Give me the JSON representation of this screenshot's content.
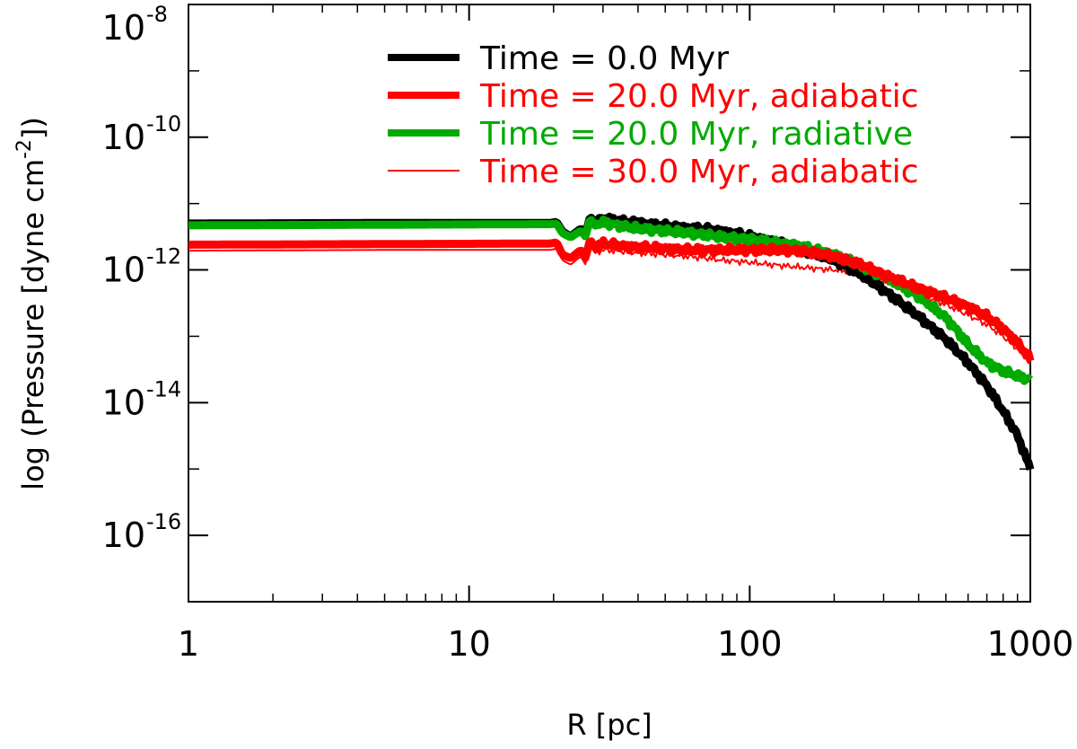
{
  "chart_data": {
    "type": "line",
    "xscale": "log",
    "yscale": "log",
    "xlim": [
      1,
      1000
    ],
    "ylim": [
      1e-17,
      1e-08
    ],
    "xlabel": "R [pc]",
    "ylabel": {
      "prefix": "log (Pressure [dyne cm",
      "exponent": "-2",
      "suffix": "])"
    },
    "x_ticks": [
      {
        "value": 1,
        "label": "1"
      },
      {
        "value": 10,
        "label": "10"
      },
      {
        "value": 100,
        "label": "100"
      },
      {
        "value": 1000,
        "label": "1000"
      }
    ],
    "y_ticks": [
      {
        "value": 1e-16,
        "base": "10",
        "exponent": "-16"
      },
      {
        "value": 1e-14,
        "base": "10",
        "exponent": "-14"
      },
      {
        "value": 1e-12,
        "base": "10",
        "exponent": "-12"
      },
      {
        "value": 1e-10,
        "base": "10",
        "exponent": "-10"
      },
      {
        "value": 1e-08,
        "base": "10",
        "exponent": "-8"
      }
    ],
    "legend_position": "top-right",
    "series": [
      {
        "name": "Time = 0.0 Myr",
        "color": "#000000",
        "line_weight": "thick",
        "points": [
          [
            1,
            5e-12
          ],
          [
            5,
            5.1e-12
          ],
          [
            19.5,
            5.1e-12
          ],
          [
            20.5,
            5.3e-12
          ],
          [
            21.5,
            3.8e-12
          ],
          [
            23,
            3.2e-12
          ],
          [
            25,
            4.2e-12
          ],
          [
            26,
            3.4e-12
          ],
          [
            27,
            6.5e-12
          ],
          [
            28,
            5.2e-12
          ],
          [
            30,
            6e-12
          ],
          [
            33,
            5.6e-12
          ],
          [
            36,
            5.3e-12
          ],
          [
            40,
            5.2e-12
          ],
          [
            45,
            4.8e-12
          ],
          [
            50,
            4.6e-12
          ],
          [
            60,
            4.3e-12
          ],
          [
            70,
            4.1e-12
          ],
          [
            80,
            3.8e-12
          ],
          [
            90,
            3.5e-12
          ],
          [
            100,
            3.2e-12
          ],
          [
            120,
            2.7e-12
          ],
          [
            150,
            2.1e-12
          ],
          [
            200,
            1.4e-12
          ],
          [
            250,
            8.5e-13
          ],
          [
            300,
            5e-13
          ],
          [
            400,
            2e-13
          ],
          [
            500,
            9e-14
          ],
          [
            600,
            4e-14
          ],
          [
            700,
            1.8e-14
          ],
          [
            800,
            7.5e-15
          ],
          [
            900,
            3.2e-15
          ],
          [
            1000,
            1e-15
          ]
        ]
      },
      {
        "name": "Time = 20.0 Myr, adiabatic",
        "color": "#ff0000",
        "line_weight": "thick",
        "points": [
          [
            1,
            2.4e-12
          ],
          [
            5,
            2.45e-12
          ],
          [
            19.5,
            2.5e-12
          ],
          [
            20.5,
            2.6e-12
          ],
          [
            21.5,
            1.7e-12
          ],
          [
            23,
            1.5e-12
          ],
          [
            25,
            2e-12
          ],
          [
            26,
            1.5e-12
          ],
          [
            27,
            2.9e-12
          ],
          [
            28,
            2.2e-12
          ],
          [
            30,
            2.5e-12
          ],
          [
            35,
            2.3e-12
          ],
          [
            40,
            2.2e-12
          ],
          [
            50,
            2.1e-12
          ],
          [
            60,
            2e-12
          ],
          [
            70,
            2e-12
          ],
          [
            80,
            2e-12
          ],
          [
            100,
            2e-12
          ],
          [
            120,
            2e-12
          ],
          [
            150,
            1.95e-12
          ],
          [
            200,
            1.6e-12
          ],
          [
            250,
            1.2e-12
          ],
          [
            300,
            8.5e-13
          ],
          [
            400,
            5.3e-13
          ],
          [
            500,
            3.8e-13
          ],
          [
            600,
            2.8e-13
          ],
          [
            700,
            2e-13
          ],
          [
            800,
            1.3e-13
          ],
          [
            900,
            8e-14
          ],
          [
            1000,
            4.5e-14
          ]
        ]
      },
      {
        "name": "Time = 20.0 Myr, radiative",
        "color": "#00aa00",
        "line_weight": "thick",
        "points": [
          [
            1,
            4.7e-12
          ],
          [
            5,
            4.8e-12
          ],
          [
            19.5,
            4.9e-12
          ],
          [
            20.5,
            5e-12
          ],
          [
            21.5,
            3.6e-12
          ],
          [
            23,
            3.1e-12
          ],
          [
            25,
            3.9e-12
          ],
          [
            26,
            3.2e-12
          ],
          [
            27,
            6e-12
          ],
          [
            28,
            4.8e-12
          ],
          [
            30,
            5.2e-12
          ],
          [
            35,
            4.6e-12
          ],
          [
            40,
            4.2e-12
          ],
          [
            50,
            3.9e-12
          ],
          [
            60,
            3.6e-12
          ],
          [
            70,
            3.4e-12
          ],
          [
            80,
            3.1e-12
          ],
          [
            100,
            2.9e-12
          ],
          [
            120,
            2.6e-12
          ],
          [
            150,
            2.3e-12
          ],
          [
            200,
            1.7e-12
          ],
          [
            250,
            1.15e-12
          ],
          [
            300,
            8e-13
          ],
          [
            400,
            4e-13
          ],
          [
            500,
            1.9e-13
          ],
          [
            550,
            1.2e-13
          ],
          [
            600,
            7.5e-14
          ],
          [
            700,
            4e-14
          ],
          [
            800,
            3e-14
          ],
          [
            900,
            2.5e-14
          ],
          [
            1000,
            2.2e-14
          ]
        ]
      },
      {
        "name": "Time = 30.0 Myr, adiabatic",
        "color": "#ff0000",
        "line_weight": "thin",
        "points": [
          [
            1,
            1.95e-12
          ],
          [
            5,
            2e-12
          ],
          [
            19.5,
            2e-12
          ],
          [
            20.5,
            2.1e-12
          ],
          [
            21.5,
            1.4e-12
          ],
          [
            23,
            1.2e-12
          ],
          [
            25,
            1.6e-12
          ],
          [
            26,
            1.2e-12
          ],
          [
            27,
            2.4e-12
          ],
          [
            28,
            1.8e-12
          ],
          [
            30,
            2e-12
          ],
          [
            35,
            1.9e-12
          ],
          [
            40,
            1.8e-12
          ],
          [
            50,
            1.7e-12
          ],
          [
            60,
            1.6e-12
          ],
          [
            70,
            1.5e-12
          ],
          [
            80,
            1.4e-12
          ],
          [
            100,
            1.3e-12
          ],
          [
            120,
            1.2e-12
          ],
          [
            150,
            1.1e-12
          ],
          [
            200,
            1e-12
          ],
          [
            250,
            9e-13
          ],
          [
            300,
            7e-13
          ],
          [
            400,
            4.3e-13
          ],
          [
            500,
            3e-13
          ],
          [
            600,
            2.1e-13
          ],
          [
            700,
            1.5e-13
          ],
          [
            800,
            1e-13
          ],
          [
            900,
            6.5e-14
          ],
          [
            1000,
            4e-14
          ]
        ]
      }
    ]
  }
}
